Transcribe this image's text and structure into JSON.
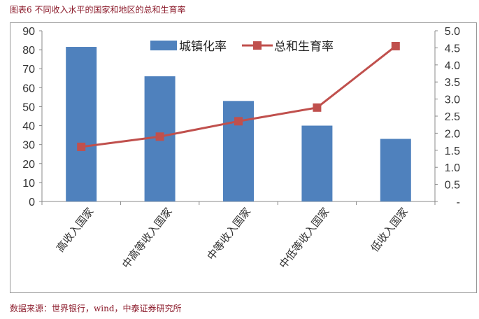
{
  "title": "图表6 不同收入水平的国家和地区的总和生育率",
  "source": "数据来源：世界银行，wind，中泰证券研究所",
  "chart_data": {
    "type": "bar+line",
    "categories": [
      "高收入国家",
      "中高等收入国家",
      "中等收入国家",
      "中低等收入国家",
      "低收入国家"
    ],
    "series": [
      {
        "name": "城镇化率",
        "type": "bar",
        "axis": "left",
        "color": "#4f81bd",
        "values": [
          81.5,
          66,
          53,
          40,
          33
        ]
      },
      {
        "name": "总和生育率",
        "type": "line",
        "axis": "right",
        "color": "#c0504d",
        "values": [
          1.6,
          1.9,
          2.35,
          2.75,
          4.55
        ]
      }
    ],
    "left_axis": {
      "ylim": [
        0,
        90
      ],
      "ticks": [
        "0",
        "10",
        "20",
        "30",
        "40",
        "50",
        "60",
        "70",
        "80",
        "90"
      ]
    },
    "right_axis": {
      "ylim": [
        0,
        5
      ],
      "ticks": [
        "-",
        "0.5",
        "1.0",
        "1.5",
        "2.0",
        "2.5",
        "3.0",
        "3.5",
        "4.0",
        "4.5",
        "5.0"
      ]
    },
    "legend": "top-center",
    "grid": false
  }
}
